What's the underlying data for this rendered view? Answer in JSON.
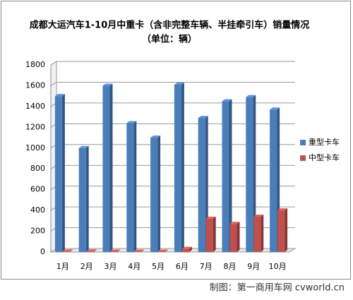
{
  "chart_data": {
    "type": "bar3d",
    "title": "成都大运汽车1-10月中重卡（含非完整车辆、半挂牵引车）销量情况",
    "subtitle": "（单位：辆）",
    "source": "制图：第一商用车网 cvworld.cn",
    "categories": [
      "1月",
      "2月",
      "3月",
      "4月",
      "5月",
      "6月",
      "7月",
      "8月",
      "9月",
      "10月"
    ],
    "series": [
      {
        "name": "重型卡车",
        "color": "#4a7ebb",
        "values": [
          1500,
          1000,
          1600,
          1240,
          1100,
          1610,
          1290,
          1450,
          1490,
          1370
        ]
      },
      {
        "name": "中型卡车",
        "color": "#c0504d",
        "values": [
          5,
          5,
          3,
          3,
          3,
          30,
          320,
          270,
          340,
          400
        ]
      }
    ],
    "ylim": [
      0,
      1800
    ],
    "yticks": [
      0,
      200,
      400,
      600,
      800,
      1000,
      1200,
      1400,
      1600,
      1800
    ],
    "grid": true,
    "legend": "right"
  }
}
